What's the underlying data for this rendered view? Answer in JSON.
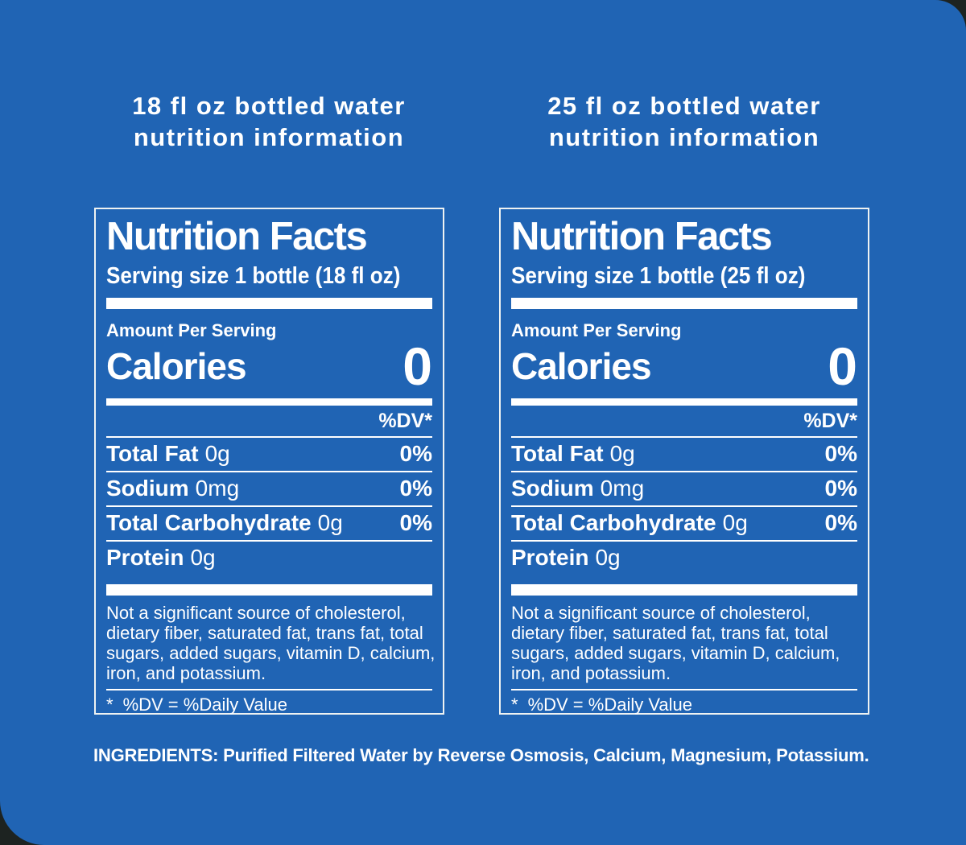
{
  "page": {
    "background_color": "#2064b4",
    "corner_color": "#1d2321",
    "text_color": "#ffffff"
  },
  "headers": {
    "left": {
      "line1": "18 fl oz bottled water",
      "line2": "nutrition information"
    },
    "right": {
      "line1": "25 fl oz bottled water",
      "line2": "nutrition information"
    }
  },
  "panels": [
    {
      "title": "Nutrition Facts",
      "serving_size": "Serving size 1 bottle (18 fl oz)",
      "amount_per_serving": "Amount Per Serving",
      "calories_label": "Calories",
      "calories_value": "0",
      "dv_header": "%DV*",
      "rows": [
        {
          "name": "Total Fat",
          "amount": "0g",
          "dv": "0%"
        },
        {
          "name": "Sodium",
          "amount": "0mg",
          "dv": "0%"
        },
        {
          "name": "Total Carbohydrate",
          "amount": "0g",
          "dv": "0%"
        },
        {
          "name": "Protein",
          "amount": "0g",
          "dv": ""
        }
      ],
      "footnote_lines": [
        "Not a significant source of cholesterol,",
        "dietary fiber, saturated fat, trans fat, total",
        "sugars, added sugars, vitamin D, calcium,",
        "iron, and potassium."
      ],
      "dv_note": {
        "symbol": "*",
        "text": "%DV = %Daily Value"
      }
    },
    {
      "title": "Nutrition Facts",
      "serving_size": "Serving size 1 bottle (25 fl oz)",
      "amount_per_serving": "Amount Per Serving",
      "calories_label": "Calories",
      "calories_value": "0",
      "dv_header": "%DV*",
      "rows": [
        {
          "name": "Total Fat",
          "amount": "0g",
          "dv": "0%"
        },
        {
          "name": "Sodium",
          "amount": "0mg",
          "dv": "0%"
        },
        {
          "name": "Total Carbohydrate",
          "amount": "0g",
          "dv": "0%"
        },
        {
          "name": "Protein",
          "amount": "0g",
          "dv": ""
        }
      ],
      "footnote_lines": [
        "Not a significant source of cholesterol,",
        "dietary fiber, saturated fat, trans fat, total",
        "sugars, added sugars, vitamin D, calcium,",
        "iron, and potassium."
      ],
      "dv_note": {
        "symbol": "*",
        "text": "%DV = %Daily Value"
      }
    }
  ],
  "ingredients": "INGREDIENTS: Purified Filtered Water by Reverse Osmosis, Calcium, Magnesium, Potassium."
}
